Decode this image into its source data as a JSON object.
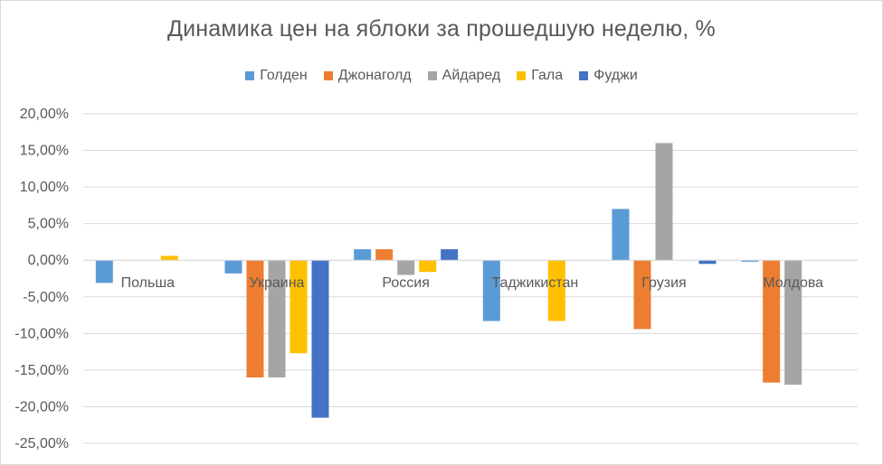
{
  "chart_data": {
    "type": "bar",
    "title": "Динамика цен на яблоки за прошедшую неделю, %",
    "categories": [
      "Польша",
      "Украина",
      "Россия",
      "Таджикистан",
      "Грузия",
      "Молдова"
    ],
    "series": [
      {
        "name": "Голден",
        "color": "#5b9bd5",
        "values": [
          -3.1,
          -1.8,
          1.5,
          -8.3,
          7.0,
          -0.2
        ]
      },
      {
        "name": "Джонаголд",
        "color": "#ed7d31",
        "values": [
          0,
          -16.0,
          1.5,
          0,
          -9.4,
          -16.7
        ]
      },
      {
        "name": "Айдаред",
        "color": "#a5a5a5",
        "values": [
          0,
          -16.0,
          -2.0,
          0,
          16.0,
          -17.0
        ]
      },
      {
        "name": "Гала",
        "color": "#ffc000",
        "values": [
          0.6,
          -12.7,
          -1.6,
          -8.3,
          0,
          0
        ]
      },
      {
        "name": "Фуджи",
        "color": "#4472c4",
        "values": [
          0,
          -21.5,
          1.5,
          0,
          -0.5,
          0
        ]
      }
    ],
    "y_ticks": [
      "20,00%",
      "15,00%",
      "10,00%",
      "5,00%",
      "0,00%",
      "-5,00%",
      "-10,00%",
      "-15,00%",
      "-20,00%",
      "-25,00%"
    ],
    "ylim": [
      -25,
      20
    ],
    "ylabel": "",
    "xlabel": "",
    "grid": true,
    "legend_position": "top"
  }
}
